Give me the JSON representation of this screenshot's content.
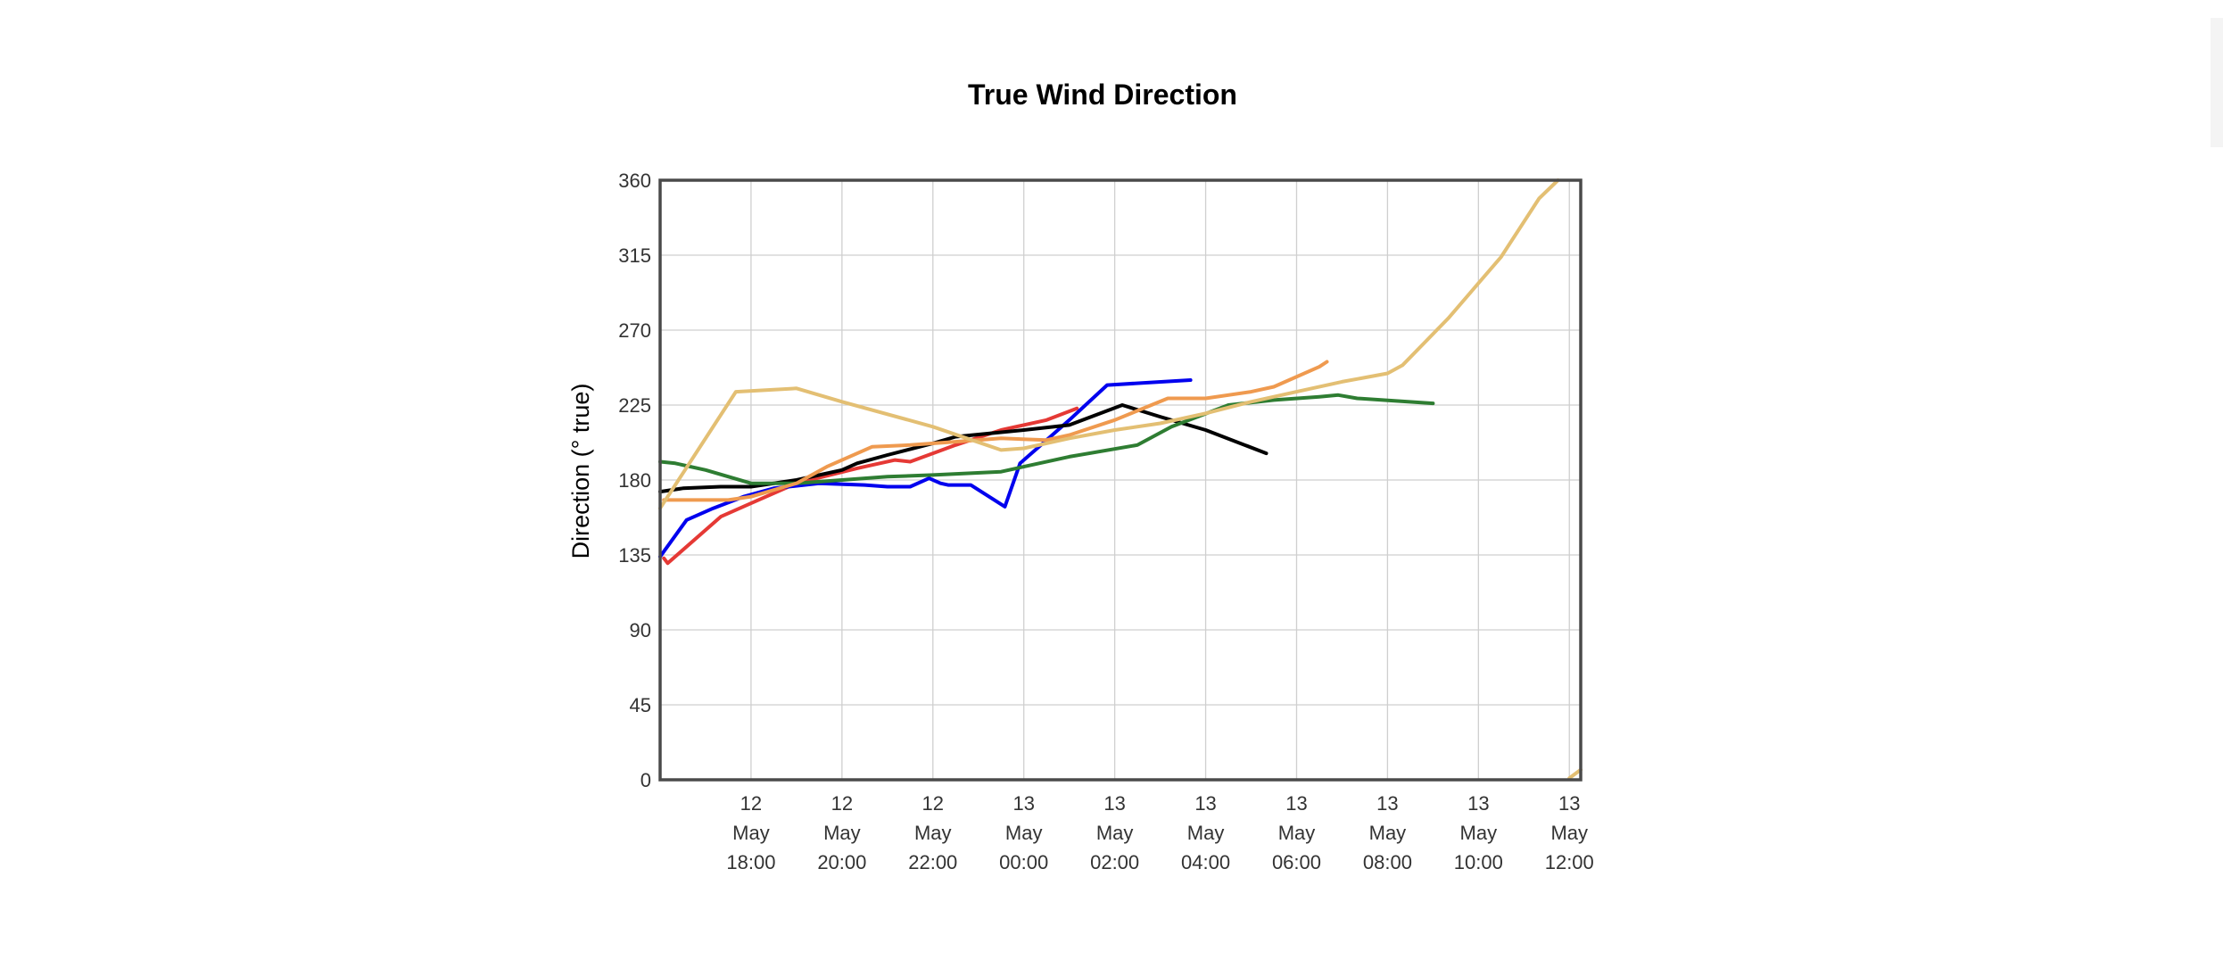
{
  "chart_data": {
    "type": "line",
    "title": "True Wind Direction",
    "ylabel": "Direction (° true)",
    "xlabel": "",
    "ylim": [
      0,
      360
    ],
    "yticks": [
      0,
      45,
      90,
      135,
      180,
      225,
      270,
      315,
      360
    ],
    "xlim": [
      "12 May 16:00",
      "13 May 12:15"
    ],
    "xticks": [
      {
        "time": "12 May 18:00",
        "lines": [
          "12",
          "May",
          "18:00"
        ]
      },
      {
        "time": "12 May 20:00",
        "lines": [
          "12",
          "May",
          "20:00"
        ]
      },
      {
        "time": "12 May 22:00",
        "lines": [
          "12",
          "May",
          "22:00"
        ]
      },
      {
        "time": "13 May 00:00",
        "lines": [
          "13",
          "May",
          "00:00"
        ]
      },
      {
        "time": "13 May 02:00",
        "lines": [
          "13",
          "May",
          "02:00"
        ]
      },
      {
        "time": "13 May 04:00",
        "lines": [
          "13",
          "May",
          "04:00"
        ]
      },
      {
        "time": "13 May 06:00",
        "lines": [
          "13",
          "May",
          "06:00"
        ]
      },
      {
        "time": "13 May 08:00",
        "lines": [
          "13",
          "May",
          "08:00"
        ]
      },
      {
        "time": "13 May 10:00",
        "lines": [
          "13",
          "May",
          "10:00"
        ]
      },
      {
        "time": "13 May 12:00",
        "lines": [
          "13",
          "May",
          "12:00"
        ]
      }
    ],
    "grid": true,
    "legend": "none",
    "series": [
      {
        "color": "#e53935",
        "points": [
          [
            "12 May 16:05",
            133
          ],
          [
            "12 May 16:10",
            130
          ],
          [
            "12 May 17:20",
            158
          ],
          [
            "12 May 18:00",
            166
          ],
          [
            "12 May 19:00",
            178
          ],
          [
            "12 May 20:20",
            187
          ],
          [
            "12 May 21:10",
            192
          ],
          [
            "12 May 21:30",
            191
          ],
          [
            "12 May 22:30",
            201
          ],
          [
            "12 May 23:30",
            210
          ],
          [
            "13 May 00:30",
            216
          ],
          [
            "13 May 01:10",
            223
          ]
        ]
      },
      {
        "color": "#0000ee",
        "points": [
          [
            "12 May 16:00",
            134
          ],
          [
            "12 May 16:35",
            156
          ],
          [
            "12 May 17:10",
            163
          ],
          [
            "12 May 17:50",
            170
          ],
          [
            "12 May 18:30",
            175
          ],
          [
            "12 May 19:30",
            178
          ],
          [
            "12 May 20:30",
            177
          ],
          [
            "12 May 21:00",
            176
          ],
          [
            "12 May 21:30",
            176
          ],
          [
            "12 May 21:55",
            181
          ],
          [
            "12 May 22:10",
            178
          ],
          [
            "12 May 22:20",
            177
          ],
          [
            "12 May 22:50",
            177
          ],
          [
            "12 May 23:35",
            164
          ],
          [
            "12 May 23:55",
            190
          ],
          [
            "13 May 00:20",
            200
          ],
          [
            "13 May 01:00",
            216
          ],
          [
            "13 May 01:50",
            237
          ],
          [
            "13 May 03:40",
            240
          ]
        ]
      },
      {
        "color": "#000000",
        "points": [
          [
            "12 May 16:00",
            173
          ],
          [
            "12 May 16:30",
            175
          ],
          [
            "12 May 17:20",
            176
          ],
          [
            "12 May 18:00",
            176
          ],
          [
            "12 May 19:00",
            180
          ],
          [
            "12 May 20:00",
            186
          ],
          [
            "12 May 20:20",
            190
          ],
          [
            "12 May 21:00",
            195
          ],
          [
            "12 May 22:00",
            202
          ],
          [
            "12 May 22:30",
            206
          ],
          [
            "13 May 00:00",
            210
          ],
          [
            "13 May 01:00",
            213
          ],
          [
            "13 May 02:10",
            225
          ],
          [
            "13 May 03:00",
            218
          ],
          [
            "13 May 04:00",
            210
          ],
          [
            "13 May 05:20",
            196
          ]
        ]
      },
      {
        "color": "#2e7d32",
        "points": [
          [
            "12 May 16:00",
            191
          ],
          [
            "12 May 16:20",
            190
          ],
          [
            "12 May 17:00",
            186
          ],
          [
            "12 May 18:00",
            178
          ],
          [
            "12 May 19:00",
            178
          ],
          [
            "12 May 20:00",
            180
          ],
          [
            "12 May 21:00",
            182
          ],
          [
            "12 May 22:00",
            183
          ],
          [
            "12 May 23:30",
            185
          ],
          [
            "13 May 00:00",
            188
          ],
          [
            "13 May 01:00",
            194
          ],
          [
            "13 May 02:30",
            201
          ],
          [
            "13 May 03:15",
            212
          ],
          [
            "13 May 04:30",
            225
          ],
          [
            "13 May 05:30",
            228
          ],
          [
            "13 May 06:30",
            230
          ],
          [
            "13 May 06:55",
            231
          ],
          [
            "13 May 07:20",
            229
          ],
          [
            "13 May 09:00",
            226
          ]
        ]
      },
      {
        "color": "#ef9a4f",
        "points": [
          [
            "12 May 16:05",
            168
          ],
          [
            "12 May 17:30",
            168
          ],
          [
            "12 May 18:00",
            170
          ],
          [
            "12 May 19:00",
            178
          ],
          [
            "12 May 19:40",
            188
          ],
          [
            "12 May 20:40",
            200
          ],
          [
            "12 May 21:30",
            201
          ],
          [
            "12 May 22:30",
            203
          ],
          [
            "12 May 23:30",
            205
          ],
          [
            "13 May 00:30",
            204
          ],
          [
            "13 May 01:00",
            207
          ],
          [
            "13 May 02:00",
            216
          ],
          [
            "13 May 03:10",
            229
          ],
          [
            "13 May 04:00",
            229
          ],
          [
            "13 May 05:00",
            233
          ],
          [
            "13 May 05:30",
            236
          ],
          [
            "13 May 06:30",
            248
          ],
          [
            "13 May 06:40",
            251
          ]
        ]
      },
      {
        "color": "#e3bf73",
        "points": [
          [
            "12 May 16:00",
            163
          ],
          [
            "12 May 17:40",
            233
          ],
          [
            "12 May 19:00",
            235
          ],
          [
            "12 May 20:00",
            227
          ],
          [
            "12 May 22:00",
            212
          ],
          [
            "12 May 23:30",
            198
          ],
          [
            "13 May 00:00",
            199
          ],
          [
            "13 May 01:00",
            205
          ],
          [
            "13 May 02:00",
            210
          ],
          [
            "13 May 03:00",
            214
          ],
          [
            "13 May 04:00",
            220
          ],
          [
            "13 May 05:00",
            227
          ],
          [
            "13 May 06:00",
            233
          ],
          [
            "13 May 07:00",
            239
          ],
          [
            "13 May 08:00",
            244
          ],
          [
            "13 May 08:20",
            249
          ],
          [
            "13 May 09:20",
            277
          ],
          [
            "13 May 10:30",
            314
          ],
          [
            "13 May 11:20",
            349
          ],
          [
            "13 May 11:45",
            360
          ]
        ]
      },
      {
        "color": "#e3bf73",
        "points": [
          [
            "13 May 12:00",
            1
          ],
          [
            "13 May 12:15",
            6
          ]
        ]
      }
    ]
  }
}
